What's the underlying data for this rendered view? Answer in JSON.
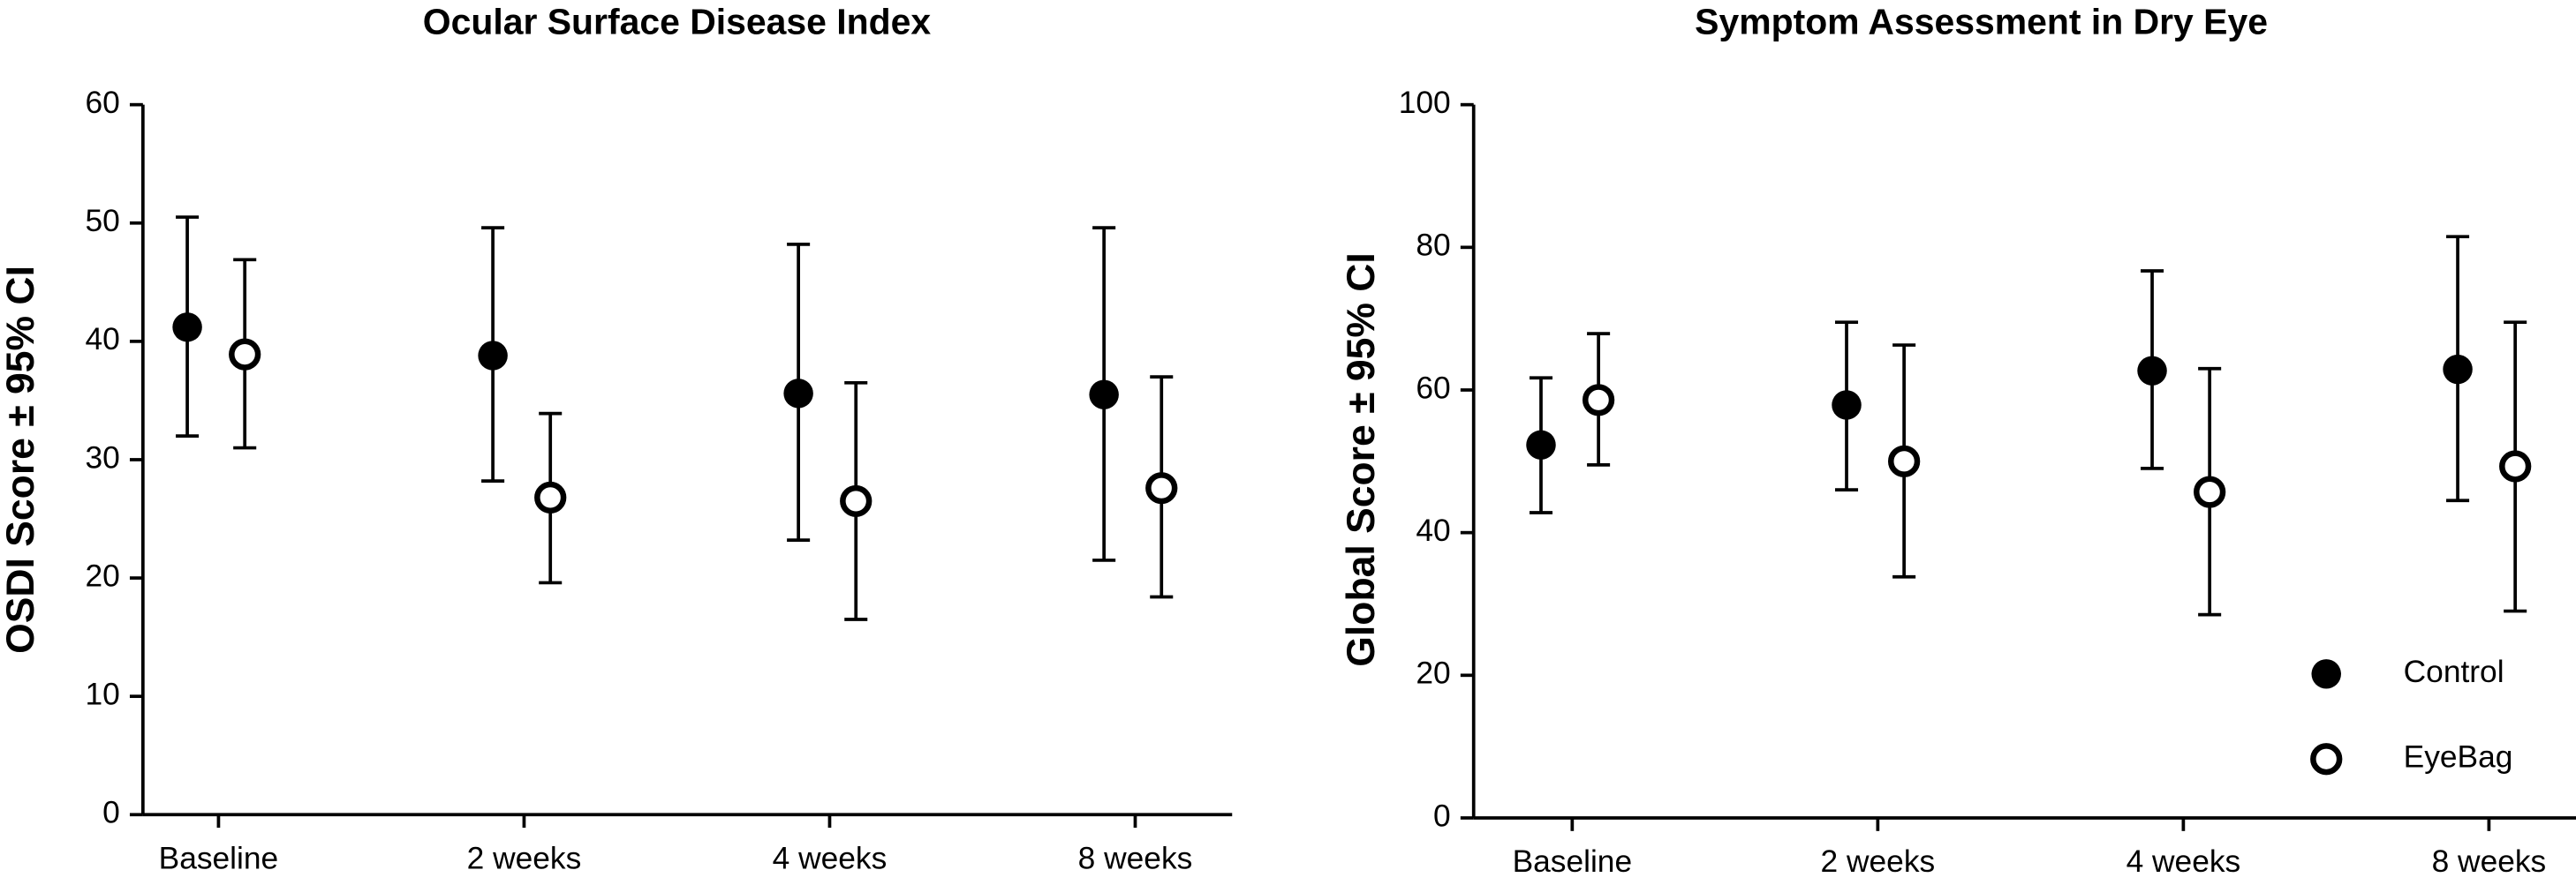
{
  "charts": [
    {
      "chart_data": {
        "type": "errorbar",
        "title": "Ocular Surface Disease Index",
        "y_label": "OSDI Score ± 95% CI",
        "categories": [
          "Baseline",
          "2 weeks",
          "4 weeks",
          "8 weeks"
        ],
        "ylim": [
          0,
          60
        ],
        "yticks": [
          0,
          10,
          20,
          30,
          40,
          50,
          60
        ],
        "series": [
          {
            "color": "#000000",
            "marker": "filled",
            "values": [
              41.2,
              38.8,
              35.6,
              35.5
            ],
            "ci_low": [
              32,
              28.2,
              23.2,
              21.5
            ],
            "ci_high": [
              50.5,
              49.6,
              48.2,
              49.6
            ]
          },
          {
            "color": "#000000",
            "marker": "open",
            "values": [
              38.9,
              26.8,
              26.5,
              27.6
            ],
            "ci_low": [
              31,
              19.6,
              16.5,
              18.4
            ],
            "ci_high": [
              46.9,
              33.9,
              36.5,
              37
            ]
          }
        ]
      }
    },
    {
      "chart_data": {
        "type": "errorbar",
        "title": "Symptom Assessment in Dry Eye",
        "y_label": "Global Score ± 95% CI",
        "categories": [
          "Baseline",
          "2 weeks",
          "4 weeks",
          "8 weeks"
        ],
        "ylim": [
          0,
          100
        ],
        "yticks": [
          0,
          20,
          40,
          60,
          80,
          100
        ],
        "legend": "lower right",
        "series": [
          {
            "name": "Control",
            "color": "#000000",
            "marker": "filled",
            "values": [
              52.3,
              57.9,
              62.7,
              62.9
            ],
            "ci_low": [
              42.8,
              46,
              49,
              44.5
            ],
            "ci_high": [
              61.7,
              69.5,
              76.7,
              81.5
            ]
          },
          {
            "name": "EyeBag",
            "color": "#000000",
            "marker": "open",
            "values": [
              58.6,
              50,
              45.7,
              49.3
            ],
            "ci_low": [
              49.5,
              33.8,
              28.5,
              29
            ],
            "ci_high": [
              67.9,
              66.3,
              63,
              69.5
            ]
          }
        ]
      }
    }
  ]
}
